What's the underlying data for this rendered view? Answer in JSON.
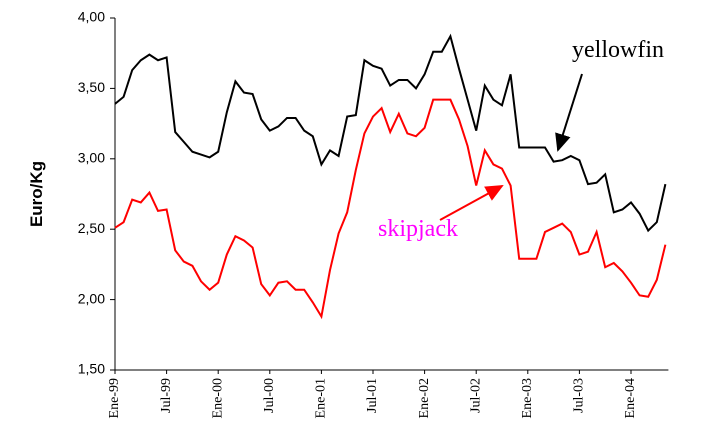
{
  "chart_data": {
    "type": "line",
    "y_label": "Euro/Kg",
    "categories": [
      "Ene-99",
      null,
      null,
      null,
      null,
      null,
      "Jul-99",
      null,
      null,
      null,
      null,
      null,
      "Ene-00",
      null,
      null,
      null,
      null,
      null,
      "Jul-00",
      null,
      null,
      null,
      null,
      null,
      "Ene-01",
      null,
      null,
      null,
      null,
      null,
      "Jul-01",
      null,
      null,
      null,
      null,
      null,
      "Ene-02",
      null,
      null,
      null,
      null,
      null,
      "Jul-02",
      null,
      null,
      null,
      null,
      null,
      "Ene-03",
      null,
      null,
      null,
      null,
      null,
      "Jul-03",
      null,
      null,
      null,
      null,
      null,
      "Ene-04",
      null,
      null,
      null,
      null
    ],
    "series": [
      {
        "name": "yellowfin",
        "color": "#000000",
        "values": [
          3.39,
          3.44,
          3.63,
          3.7,
          3.74,
          3.7,
          3.72,
          3.19,
          3.12,
          3.05,
          3.03,
          3.01,
          3.05,
          3.33,
          3.55,
          3.47,
          3.46,
          3.28,
          3.2,
          3.23,
          3.29,
          3.29,
          3.2,
          3.16,
          2.96,
          3.06,
          3.02,
          3.3,
          3.31,
          3.7,
          3.66,
          3.64,
          3.52,
          3.56,
          3.56,
          3.5,
          3.6,
          3.76,
          3.76,
          3.87,
          3.64,
          3.42,
          3.2,
          3.52,
          3.42,
          3.38,
          3.6,
          3.08,
          3.08,
          3.08,
          3.08,
          2.98,
          2.99,
          3.02,
          2.99,
          2.82,
          2.83,
          2.89,
          2.62,
          2.64,
          2.69,
          2.61,
          2.49,
          2.55,
          2.82
        ]
      },
      {
        "name": "skipjack",
        "color": "#ff0000",
        "label_color": "#ff00ff",
        "values": [
          2.51,
          2.55,
          2.71,
          2.69,
          2.76,
          2.63,
          2.64,
          2.35,
          2.27,
          2.24,
          2.13,
          2.07,
          2.12,
          2.32,
          2.45,
          2.42,
          2.37,
          2.11,
          2.03,
          2.12,
          2.13,
          2.07,
          2.07,
          1.98,
          1.88,
          2.21,
          2.47,
          2.62,
          2.92,
          3.18,
          3.3,
          3.36,
          3.19,
          3.32,
          3.18,
          3.16,
          3.22,
          3.42,
          3.42,
          3.42,
          3.28,
          3.09,
          2.81,
          3.06,
          2.96,
          2.93,
          2.81,
          2.29,
          2.29,
          2.29,
          2.48,
          2.51,
          2.54,
          2.48,
          2.32,
          2.34,
          2.48,
          2.23,
          2.26,
          2.2,
          2.12,
          2.03,
          2.02,
          2.14,
          2.39
        ]
      }
    ],
    "ylim": [
      1.5,
      4.0
    ],
    "yticks": [
      {
        "value": 1.5,
        "label": "1,50"
      },
      {
        "value": 2.0,
        "label": "2,00"
      },
      {
        "value": 2.5,
        "label": "2,50"
      },
      {
        "value": 3.0,
        "label": "3,00"
      },
      {
        "value": 3.5,
        "label": "3,50"
      },
      {
        "value": 4.0,
        "label": "4,00"
      }
    ],
    "grid": false
  }
}
